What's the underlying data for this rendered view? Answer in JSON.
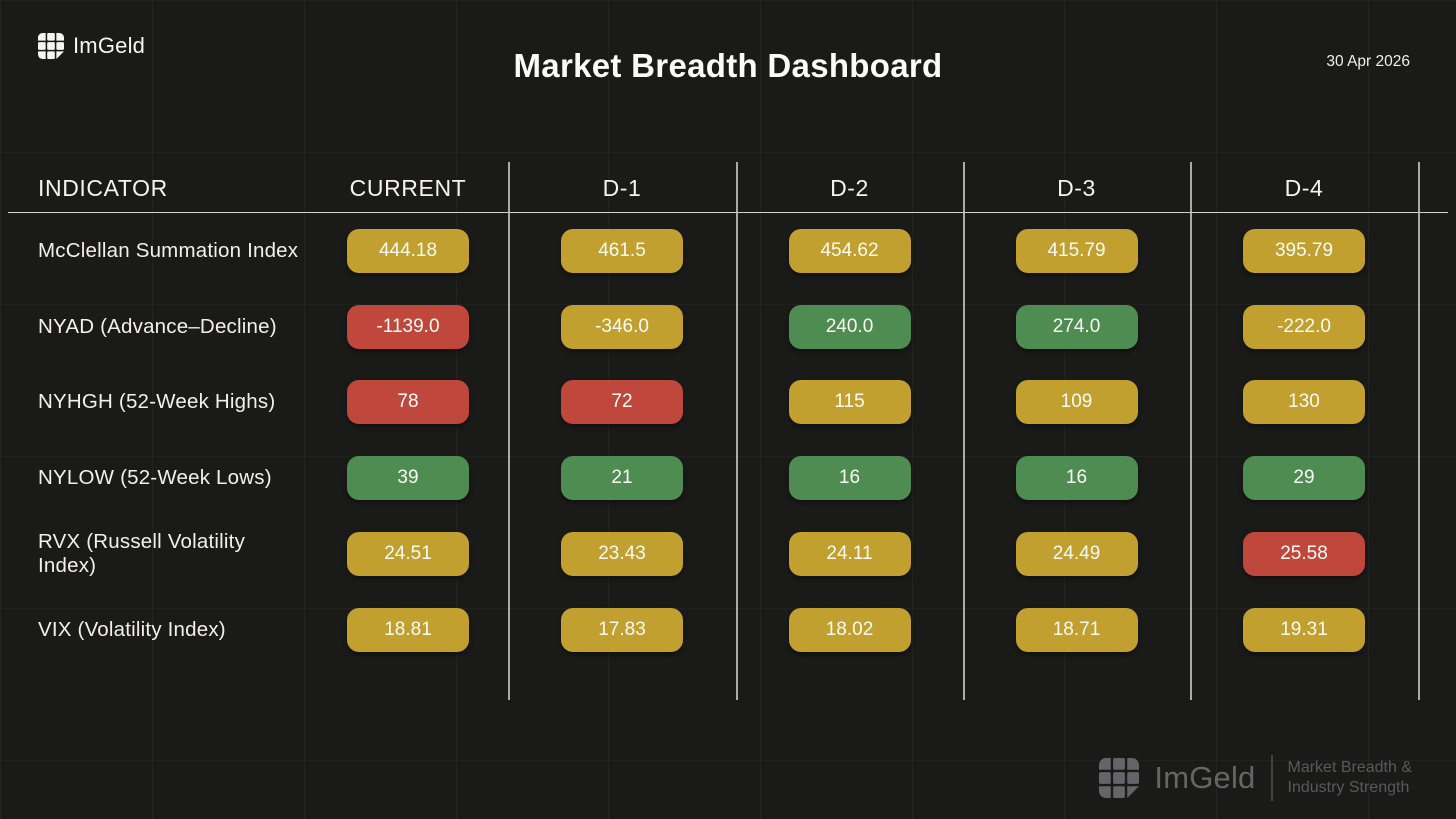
{
  "brand": {
    "name": "ImGeld"
  },
  "header": {
    "title": "Market Breadth Dashboard",
    "date": "30 Apr 2026"
  },
  "colors": {
    "amber": "#c2a02f",
    "red": "#c0473b",
    "green": "#4e8c52"
  },
  "table": {
    "columns": [
      "INDICATOR",
      "CURRENT",
      "D-1",
      "D-2",
      "D-3",
      "D-4"
    ],
    "rows": [
      {
        "label": "McClellan Summation Index",
        "values": [
          {
            "text": "444.18",
            "status": "amber"
          },
          {
            "text": "461.5",
            "status": "amber"
          },
          {
            "text": "454.62",
            "status": "amber"
          },
          {
            "text": "415.79",
            "status": "amber"
          },
          {
            "text": "395.79",
            "status": "amber"
          }
        ]
      },
      {
        "label": "NYAD (Advance–Decline)",
        "values": [
          {
            "text": "-1139.0",
            "status": "red"
          },
          {
            "text": "-346.0",
            "status": "amber"
          },
          {
            "text": "240.0",
            "status": "green"
          },
          {
            "text": "274.0",
            "status": "green"
          },
          {
            "text": "-222.0",
            "status": "amber"
          }
        ]
      },
      {
        "label": "NYHGH (52-Week Highs)",
        "values": [
          {
            "text": "78",
            "status": "red"
          },
          {
            "text": "72",
            "status": "red"
          },
          {
            "text": "115",
            "status": "amber"
          },
          {
            "text": "109",
            "status": "amber"
          },
          {
            "text": "130",
            "status": "amber"
          }
        ]
      },
      {
        "label": "NYLOW (52-Week Lows)",
        "values": [
          {
            "text": "39",
            "status": "green"
          },
          {
            "text": "21",
            "status": "green"
          },
          {
            "text": "16",
            "status": "green"
          },
          {
            "text": "16",
            "status": "green"
          },
          {
            "text": "29",
            "status": "green"
          }
        ]
      },
      {
        "label": "RVX (Russell Volatility Index)",
        "values": [
          {
            "text": "24.51",
            "status": "amber"
          },
          {
            "text": "23.43",
            "status": "amber"
          },
          {
            "text": "24.11",
            "status": "amber"
          },
          {
            "text": "24.49",
            "status": "amber"
          },
          {
            "text": "25.58",
            "status": "red"
          }
        ]
      },
      {
        "label": "VIX (Volatility Index)",
        "values": [
          {
            "text": "18.81",
            "status": "amber"
          },
          {
            "text": "17.83",
            "status": "amber"
          },
          {
            "text": "18.02",
            "status": "amber"
          },
          {
            "text": "18.71",
            "status": "amber"
          },
          {
            "text": "19.31",
            "status": "amber"
          }
        ]
      }
    ]
  },
  "footer": {
    "brand": "ImGeld",
    "tagline_line1": "Market Breadth &",
    "tagline_line2": "Industry Strength"
  }
}
